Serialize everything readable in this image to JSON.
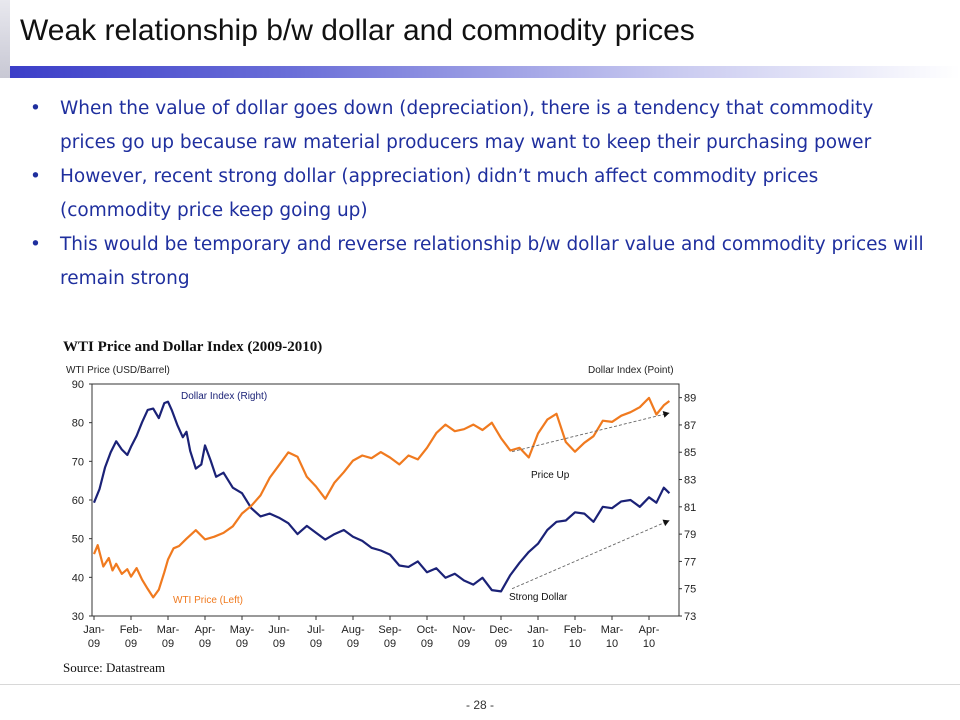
{
  "slide": {
    "title": "Weak relationship b/w dollar and commodity prices",
    "page_number": "- 28 -"
  },
  "bullets": [
    {
      "marker": "•",
      "text": "When the value of dollar goes down (depreciation), there is a tendency that  commodity prices go up because raw material producers may want to keep their purchasing power"
    },
    {
      "marker": "•",
      "text": "However, recent strong dollar (appreciation) didn’t much affect commodity prices (commodity price keep going up)"
    },
    {
      "marker": "•",
      "text": "This would be temporary and reverse relationship b/w dollar value and commodity prices will remain strong"
    }
  ],
  "source": "Source: Datastream",
  "chart_data": {
    "type": "line",
    "title": "WTI Price and Dollar Index (2009-2010)",
    "ylabel_left": "WTI Price (USD/Barrel)",
    "ylabel_right": "Dollar Index (Point)",
    "x_ticks": [
      [
        "Jan-",
        "09"
      ],
      [
        "Feb-",
        "09"
      ],
      [
        "Mar-",
        "09"
      ],
      [
        "Apr-",
        "09"
      ],
      [
        "May-",
        "09"
      ],
      [
        "Jun-",
        "09"
      ],
      [
        "Jul-",
        "09"
      ],
      [
        "Aug-",
        "09"
      ],
      [
        "Sep-",
        "09"
      ],
      [
        "Oct-",
        "09"
      ],
      [
        "Nov-",
        "09"
      ],
      [
        "Dec-",
        "09"
      ],
      [
        "Jan-",
        "10"
      ],
      [
        "Feb-",
        "10"
      ],
      [
        "Mar-",
        "10"
      ],
      [
        "Apr-",
        "10"
      ]
    ],
    "ylim_left": [
      30,
      90
    ],
    "yticks_left": [
      30,
      40,
      50,
      60,
      70,
      80,
      90
    ],
    "ylim_right": [
      73,
      90
    ],
    "yticks_right": [
      73,
      75,
      77,
      79,
      81,
      83,
      85,
      87,
      89
    ],
    "grid": false,
    "series": [
      {
        "name": "Dollar Index (Right)",
        "axis": "right",
        "color": "#1b2277",
        "x": [
          0,
          0.15,
          0.3,
          0.45,
          0.6,
          0.75,
          0.9,
          1.0,
          1.15,
          1.3,
          1.45,
          1.6,
          1.75,
          1.9,
          2.0,
          2.1,
          2.25,
          2.4,
          2.5,
          2.6,
          2.75,
          2.9,
          3.0,
          3.15,
          3.3,
          3.5,
          3.75,
          4.0,
          4.25,
          4.5,
          4.75,
          5.0,
          5.25,
          5.5,
          5.75,
          6.0,
          6.25,
          6.5,
          6.75,
          7.0,
          7.25,
          7.5,
          7.75,
          8.0,
          8.25,
          8.5,
          8.75,
          9.0,
          9.25,
          9.5,
          9.75,
          10.0,
          10.25,
          10.5,
          10.75,
          11.0,
          11.25,
          11.5,
          11.75,
          12.0,
          12.25,
          12.5,
          12.75,
          13.0,
          13.25,
          13.5,
          13.75,
          14.0,
          14.25,
          14.5,
          14.75,
          15.0,
          15.2,
          15.4,
          15.55
        ],
        "values": [
          81.3,
          82.3,
          83.9,
          85.0,
          85.8,
          85.2,
          84.8,
          85.4,
          86.2,
          87.2,
          88.1,
          88.2,
          87.5,
          88.6,
          88.7,
          88.1,
          87.0,
          86.1,
          86.5,
          85.1,
          83.8,
          84.1,
          85.5,
          84.4,
          83.2,
          83.5,
          82.4,
          82.0,
          80.9,
          80.3,
          80.5,
          80.2,
          79.8,
          79.0,
          79.6,
          79.1,
          78.6,
          79.0,
          79.3,
          78.8,
          78.5,
          78.0,
          77.8,
          77.5,
          76.7,
          76.6,
          77.0,
          76.2,
          76.5,
          75.8,
          76.1,
          75.6,
          75.3,
          75.8,
          74.9,
          74.8,
          76.0,
          76.9,
          77.7,
          78.3,
          79.3,
          79.9,
          80.0,
          80.6,
          80.5,
          79.9,
          81.0,
          80.9,
          81.4,
          81.5,
          81.0,
          81.7,
          81.3,
          82.4,
          82.0
        ]
      },
      {
        "name": "WTI Price (Left)",
        "axis": "left",
        "color": "#f07a1f",
        "x": [
          0,
          0.1,
          0.25,
          0.4,
          0.5,
          0.6,
          0.75,
          0.9,
          1.0,
          1.15,
          1.3,
          1.45,
          1.6,
          1.75,
          1.9,
          2.0,
          2.15,
          2.3,
          2.5,
          2.75,
          3.0,
          3.25,
          3.5,
          3.75,
          4.0,
          4.25,
          4.5,
          4.75,
          5.0,
          5.25,
          5.5,
          5.75,
          6.0,
          6.25,
          6.5,
          6.75,
          7.0,
          7.25,
          7.5,
          7.75,
          8.0,
          8.25,
          8.5,
          8.75,
          9.0,
          9.25,
          9.5,
          9.75,
          10.0,
          10.25,
          10.5,
          10.75,
          11.0,
          11.25,
          11.5,
          11.75,
          12.0,
          12.25,
          12.5,
          12.75,
          13.0,
          13.25,
          13.5,
          13.75,
          14.0,
          14.25,
          14.5,
          14.75,
          15.0,
          15.2,
          15.4,
          15.55
        ],
        "values": [
          46.0,
          48.3,
          42.8,
          45.0,
          41.8,
          43.5,
          40.9,
          42.1,
          40.2,
          42.4,
          39.4,
          37.0,
          34.8,
          36.8,
          41.3,
          44.6,
          47.5,
          48.1,
          50.0,
          52.2,
          49.8,
          50.5,
          51.5,
          53.2,
          56.5,
          58.5,
          61.2,
          65.8,
          69.0,
          72.3,
          71.2,
          66.0,
          63.5,
          60.3,
          64.5,
          67.2,
          70.2,
          71.5,
          70.8,
          72.4,
          71.0,
          69.2,
          71.5,
          70.5,
          73.5,
          77.3,
          79.5,
          77.8,
          78.3,
          79.5,
          78.1,
          80.0,
          76.0,
          72.8,
          73.5,
          71.0,
          77.2,
          80.8,
          82.3,
          75.0,
          72.5,
          74.8,
          76.5,
          80.5,
          80.2,
          81.8,
          82.7,
          84.0,
          86.4,
          82.1,
          84.5,
          85.6
        ]
      }
    ],
    "annotations": [
      {
        "text": "Price Up"
      },
      {
        "text": "Strong Dollar"
      }
    ]
  }
}
